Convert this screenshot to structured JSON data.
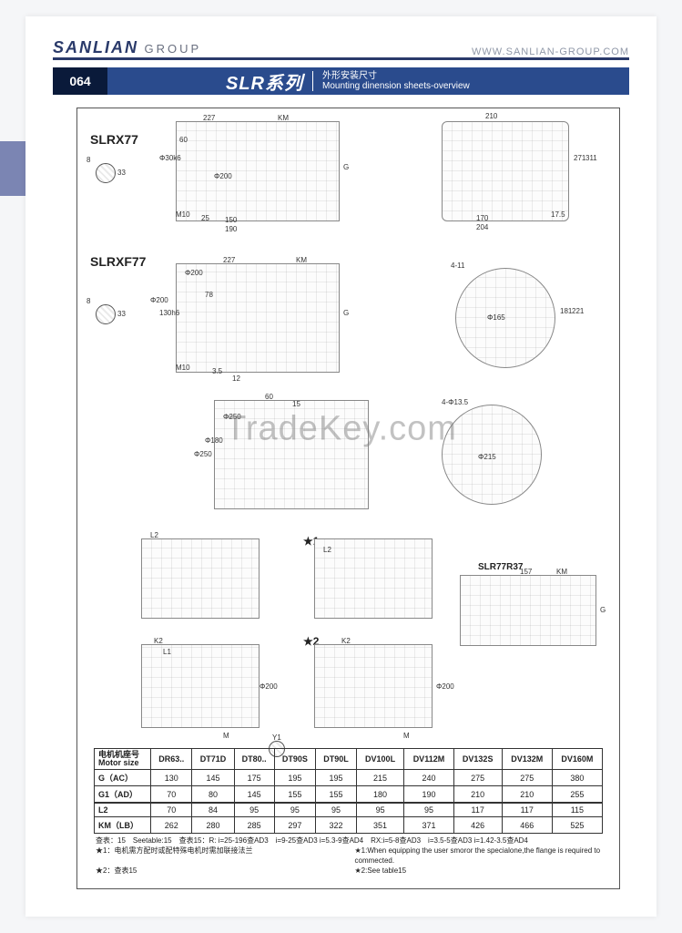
{
  "header": {
    "brand_main": "SANLIAN",
    "brand_sub": "GROUP",
    "url": "WWW.SANLIAN-GROUP.COM"
  },
  "titlebar": {
    "page_num": "064",
    "series": "SLR系列",
    "subtitle_cn": "外形安装尺寸",
    "subtitle_en": "Mounting dinension sheets-overview"
  },
  "labels": {
    "model1": "SLRX77",
    "model2": "SLRXF77",
    "combo": "SLR77R37",
    "star1": "★1",
    "star2": "★2"
  },
  "dims": {
    "d227": "227",
    "dKM": "KM",
    "dG": "G",
    "d210": "210",
    "d170": "170",
    "d204": "204",
    "d311": "311",
    "d271": "271",
    "d175": "17.5",
    "d60": "60",
    "d78": "78",
    "d150": "150",
    "d190": "190",
    "d8": "8",
    "d33": "33",
    "dM10": "M10",
    "d25": "25",
    "d200": "Φ200",
    "d250": "Φ250",
    "d411": "4-11",
    "d165": "Φ165",
    "d181": "181",
    "d221": "221",
    "d135": "4-Φ13.5",
    "d215": "Φ215",
    "d15": "15",
    "d12": "12",
    "d35": "3.5",
    "dL2": "L2",
    "dK2": "K2",
    "dL1": "L1",
    "dM": "M",
    "dY1": "Y1",
    "d130": "130h6",
    "d180": "Φ180",
    "d157": "157",
    "dphi30": "Φ30k6",
    "dphi200b": "Φ200"
  },
  "table": {
    "header_label": "电机机座号\nMotor size",
    "columns": [
      "DR63..",
      "DT71D",
      "DT80..",
      "DT90S",
      "DT90L",
      "DV100L",
      "DV112M",
      "DV132S",
      "DV132M",
      "DV160M"
    ],
    "rows": [
      {
        "label": "G（AC）",
        "cells": [
          "130",
          "145",
          "175",
          "195",
          "195",
          "215",
          "240",
          "275",
          "275",
          "380"
        ]
      },
      {
        "label": "G1（AD）",
        "cells": [
          "70",
          "80",
          "145",
          "155",
          "155",
          "180",
          "190",
          "210",
          "210",
          "255"
        ]
      },
      {
        "label": "L2",
        "cells": [
          "70",
          "84",
          "95",
          "95",
          "95",
          "95",
          "95",
          "117",
          "117",
          "115"
        ]
      },
      {
        "label": "KM（LB）",
        "cells": [
          "262",
          "280",
          "285",
          "297",
          "322",
          "351",
          "371",
          "426",
          "466",
          "525"
        ]
      }
    ]
  },
  "notes": {
    "l1": "查表：15　Seetable:15　查表15：R: i=25-196查AD3　i=9-25查AD3 i=5.3-9查AD4　RX:i=5-8查AD3　i=3.5-5查AD3 i=1.42-3.5查AD4",
    "l2_left": "★1：电机需方配时或配特殊电机时需加联接法兰",
    "l2_right": "★1:When equipping the user smoror the specialone,the flange is required to commected.",
    "l3_left": "★2：查表15",
    "l3_right": "★2:See table15"
  },
  "watermark": "TradeKey.com"
}
